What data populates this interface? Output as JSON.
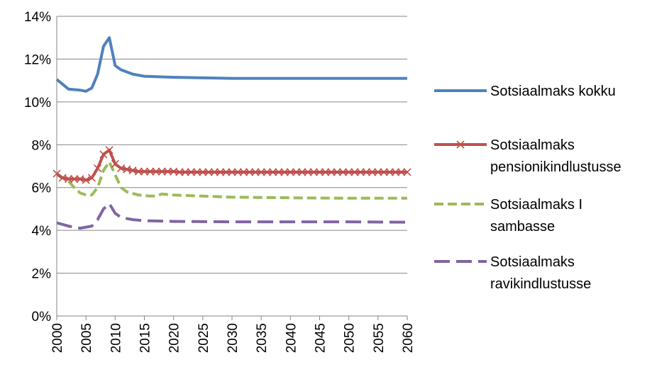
{
  "chart_data": {
    "type": "line",
    "title": "",
    "xlabel": "",
    "ylabel": "",
    "xlim": [
      2000,
      2060
    ],
    "ylim": [
      0,
      14
    ],
    "grid": true,
    "legend_position": "right",
    "x_ticks": [
      2000,
      2005,
      2010,
      2015,
      2020,
      2025,
      2030,
      2035,
      2040,
      2045,
      2050,
      2055,
      2060
    ],
    "y_ticks": [
      {
        "value": 0,
        "label": "0%"
      },
      {
        "value": 2,
        "label": "2%"
      },
      {
        "value": 4,
        "label": "4%"
      },
      {
        "value": 6,
        "label": "6%"
      },
      {
        "value": 8,
        "label": "8%"
      },
      {
        "value": 10,
        "label": "10%"
      },
      {
        "value": 12,
        "label": "12%"
      },
      {
        "value": 14,
        "label": "14%"
      }
    ],
    "series": [
      {
        "name": "Sotsiaalmaks kokku",
        "legend_lines": [
          "Sotsiaalmaks kokku"
        ],
        "color": "#4f81bd",
        "style": "solid",
        "marker": "none",
        "points": [
          [
            2000,
            11.05
          ],
          [
            2002,
            10.6
          ],
          [
            2004,
            10.55
          ],
          [
            2005,
            10.5
          ],
          [
            2006,
            10.65
          ],
          [
            2007,
            11.3
          ],
          [
            2008,
            12.6
          ],
          [
            2009,
            13.0
          ],
          [
            2010,
            11.7
          ],
          [
            2011,
            11.5
          ],
          [
            2013,
            11.3
          ],
          [
            2015,
            11.2
          ],
          [
            2020,
            11.15
          ],
          [
            2030,
            11.1
          ],
          [
            2040,
            11.1
          ],
          [
            2050,
            11.1
          ],
          [
            2060,
            11.1
          ]
        ]
      },
      {
        "name": "Sotsiaalmaks pensionikindlustusse",
        "legend_lines": [
          "Sotsiaalmaks",
          "pensionikindlustusse"
        ],
        "color": "#c0504d",
        "style": "solid",
        "marker": "x",
        "points": [
          [
            2000,
            6.65
          ],
          [
            2001,
            6.45
          ],
          [
            2002,
            6.4
          ],
          [
            2003,
            6.4
          ],
          [
            2004,
            6.4
          ],
          [
            2005,
            6.35
          ],
          [
            2006,
            6.45
          ],
          [
            2007,
            6.9
          ],
          [
            2008,
            7.55
          ],
          [
            2009,
            7.75
          ],
          [
            2010,
            7.1
          ],
          [
            2011,
            6.9
          ],
          [
            2012,
            6.85
          ],
          [
            2013,
            6.8
          ],
          [
            2014,
            6.75
          ],
          [
            2015,
            6.75
          ],
          [
            2016,
            6.75
          ],
          [
            2017,
            6.75
          ],
          [
            2018,
            6.75
          ],
          [
            2019,
            6.75
          ],
          [
            2020,
            6.75
          ],
          [
            2021,
            6.72
          ],
          [
            2022,
            6.72
          ],
          [
            2023,
            6.72
          ],
          [
            2024,
            6.72
          ],
          [
            2025,
            6.72
          ],
          [
            2026,
            6.72
          ],
          [
            2027,
            6.72
          ],
          [
            2028,
            6.72
          ],
          [
            2029,
            6.72
          ],
          [
            2030,
            6.72
          ],
          [
            2031,
            6.72
          ],
          [
            2032,
            6.72
          ],
          [
            2033,
            6.72
          ],
          [
            2034,
            6.72
          ],
          [
            2035,
            6.72
          ],
          [
            2036,
            6.72
          ],
          [
            2037,
            6.72
          ],
          [
            2038,
            6.72
          ],
          [
            2039,
            6.72
          ],
          [
            2040,
            6.72
          ],
          [
            2041,
            6.72
          ],
          [
            2042,
            6.72
          ],
          [
            2043,
            6.72
          ],
          [
            2044,
            6.72
          ],
          [
            2045,
            6.72
          ],
          [
            2046,
            6.72
          ],
          [
            2047,
            6.72
          ],
          [
            2048,
            6.72
          ],
          [
            2049,
            6.72
          ],
          [
            2050,
            6.72
          ],
          [
            2051,
            6.72
          ],
          [
            2052,
            6.72
          ],
          [
            2053,
            6.72
          ],
          [
            2054,
            6.72
          ],
          [
            2055,
            6.72
          ],
          [
            2056,
            6.72
          ],
          [
            2057,
            6.72
          ],
          [
            2058,
            6.72
          ],
          [
            2059,
            6.72
          ],
          [
            2060,
            6.72
          ]
        ]
      },
      {
        "name": "Sotsiaalmaks I sambasse",
        "legend_lines": [
          "Sotsiaalmaks I",
          "sambasse"
        ],
        "color": "#9bbb59",
        "style": "dashed",
        "marker": "none",
        "points": [
          [
            2000,
            6.6
          ],
          [
            2002,
            6.3
          ],
          [
            2003,
            6.0
          ],
          [
            2004,
            5.75
          ],
          [
            2005,
            5.65
          ],
          [
            2006,
            5.65
          ],
          [
            2007,
            6.0
          ],
          [
            2008,
            6.8
          ],
          [
            2009,
            7.2
          ],
          [
            2010,
            6.6
          ],
          [
            2011,
            6.0
          ],
          [
            2012,
            5.8
          ],
          [
            2014,
            5.65
          ],
          [
            2016,
            5.6
          ],
          [
            2017,
            5.6
          ],
          [
            2018,
            5.7
          ],
          [
            2020,
            5.65
          ],
          [
            2025,
            5.6
          ],
          [
            2030,
            5.55
          ],
          [
            2040,
            5.52
          ],
          [
            2050,
            5.5
          ],
          [
            2060,
            5.5
          ]
        ]
      },
      {
        "name": "Sotsiaalmaks ravikindlustusse",
        "legend_lines": [
          "Sotsiaalmaks",
          "ravikindlustusse"
        ],
        "color": "#8064a2",
        "style": "dashed",
        "marker": "none",
        "points": [
          [
            2000,
            4.35
          ],
          [
            2002,
            4.2
          ],
          [
            2004,
            4.1
          ],
          [
            2005,
            4.15
          ],
          [
            2006,
            4.2
          ],
          [
            2007,
            4.5
          ],
          [
            2008,
            5.0
          ],
          [
            2009,
            5.25
          ],
          [
            2010,
            4.8
          ],
          [
            2011,
            4.6
          ],
          [
            2013,
            4.5
          ],
          [
            2015,
            4.45
          ],
          [
            2020,
            4.42
          ],
          [
            2030,
            4.4
          ],
          [
            2040,
            4.4
          ],
          [
            2050,
            4.4
          ],
          [
            2060,
            4.38
          ]
        ]
      }
    ]
  }
}
